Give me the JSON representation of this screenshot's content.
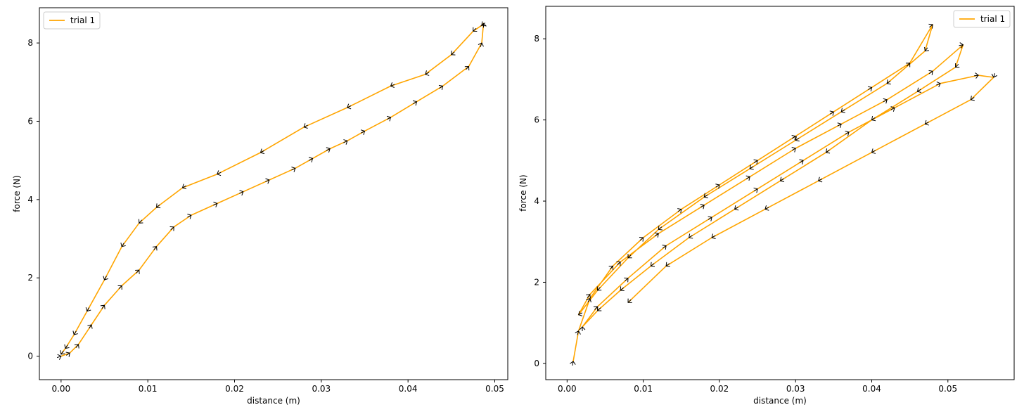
{
  "chart_data": [
    {
      "type": "line",
      "title": "",
      "xlabel": "distance (m)",
      "ylabel": "force (N)",
      "xlim": [
        -0.0025,
        0.0515
      ],
      "ylim": [
        -0.6,
        8.9
      ],
      "xticks": [
        0.0,
        0.01,
        0.02,
        0.03,
        0.04,
        0.05
      ],
      "xtick_labels": [
        "0.00",
        "0.01",
        "0.02",
        "0.03",
        "0.04",
        "0.05"
      ],
      "yticks": [
        0,
        2,
        4,
        6,
        8
      ],
      "ytick_labels": [
        "0",
        "2",
        "4",
        "6",
        "8"
      ],
      "grid": false,
      "legend_position": "upper-left",
      "series": [
        {
          "name": "trial 1",
          "color": "#FFA500",
          "marker": "arrow",
          "marker_color": "#000000",
          "x": [
            0.0,
            0.001,
            0.002,
            0.0035,
            0.005,
            0.007,
            0.009,
            0.011,
            0.013,
            0.015,
            0.018,
            0.021,
            0.024,
            0.027,
            0.029,
            0.031,
            0.033,
            0.035,
            0.038,
            0.041,
            0.044,
            0.047,
            0.0485,
            0.0487,
            0.0485,
            0.0475,
            0.045,
            0.042,
            0.038,
            0.033,
            0.028,
            0.023,
            0.018,
            0.014,
            0.011,
            0.009,
            0.007,
            0.005,
            0.003,
            0.0015,
            0.0005,
            0.0
          ],
          "y": [
            0.0,
            0.08,
            0.3,
            0.8,
            1.3,
            1.8,
            2.2,
            2.8,
            3.3,
            3.6,
            3.9,
            4.2,
            4.5,
            4.8,
            5.05,
            5.3,
            5.5,
            5.75,
            6.1,
            6.5,
            6.9,
            7.4,
            8.0,
            8.5,
            8.45,
            8.3,
            7.7,
            7.2,
            6.9,
            6.35,
            5.85,
            5.2,
            4.65,
            4.3,
            3.8,
            3.4,
            2.8,
            1.95,
            1.15,
            0.55,
            0.2,
            0.05
          ]
        }
      ]
    },
    {
      "type": "line",
      "title": "",
      "xlabel": "distance (m)",
      "ylabel": "force (N)",
      "xlim": [
        -0.0028,
        0.0587
      ],
      "ylim": [
        -0.4,
        8.8
      ],
      "xticks": [
        0.0,
        0.01,
        0.02,
        0.03,
        0.04,
        0.05
      ],
      "xtick_labels": [
        "0.00",
        "0.01",
        "0.02",
        "0.03",
        "0.04",
        "0.05"
      ],
      "yticks": [
        0,
        2,
        4,
        6,
        8
      ],
      "ytick_labels": [
        "0",
        "2",
        "4",
        "6",
        "8"
      ],
      "grid": false,
      "legend_position": "upper-right",
      "series": [
        {
          "name": "trial 1",
          "color": "#FFA500",
          "marker": "arrow",
          "marker_color": "#000000",
          "x": [
            0.0008,
            0.0015,
            0.003,
            0.006,
            0.01,
            0.015,
            0.02,
            0.025,
            0.03,
            0.035,
            0.04,
            0.045,
            0.048,
            0.047,
            0.042,
            0.036,
            0.03,
            0.024,
            0.018,
            0.012,
            0.008,
            0.004,
            0.0015,
            0.003,
            0.007,
            0.012,
            0.018,
            0.024,
            0.03,
            0.036,
            0.042,
            0.048,
            0.052,
            0.051,
            0.046,
            0.04,
            0.034,
            0.028,
            0.022,
            0.016,
            0.011,
            0.007,
            0.004,
            0.002,
            0.004,
            0.008,
            0.013,
            0.019,
            0.025,
            0.031,
            0.037,
            0.043,
            0.049,
            0.054,
            0.056,
            0.053,
            0.047,
            0.04,
            0.033,
            0.026,
            0.019,
            0.013,
            0.008
          ],
          "y": [
            0.05,
            0.8,
            1.6,
            2.4,
            3.1,
            3.8,
            4.4,
            5.0,
            5.6,
            6.2,
            6.8,
            7.4,
            8.35,
            7.7,
            6.9,
            6.2,
            5.5,
            4.8,
            4.1,
            3.3,
            2.6,
            1.8,
            1.2,
            1.7,
            2.5,
            3.2,
            3.9,
            4.6,
            5.3,
            5.9,
            6.5,
            7.2,
            7.85,
            7.3,
            6.7,
            6.0,
            5.2,
            4.5,
            3.8,
            3.1,
            2.4,
            1.8,
            1.3,
            0.9,
            1.4,
            2.1,
            2.9,
            3.6,
            4.3,
            5.0,
            5.7,
            6.3,
            6.9,
            7.1,
            7.05,
            6.5,
            5.9,
            5.2,
            4.5,
            3.8,
            3.1,
            2.4,
            1.5
          ]
        }
      ]
    }
  ]
}
